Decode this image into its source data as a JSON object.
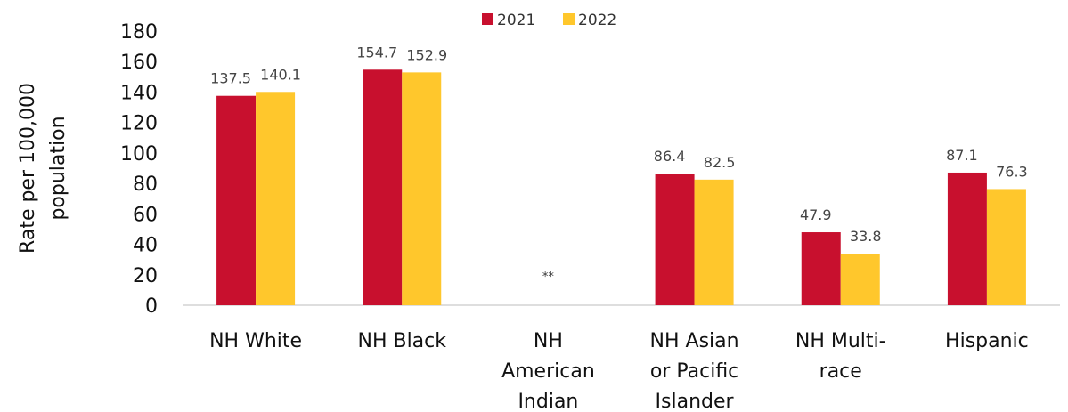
{
  "chart_data": {
    "type": "bar",
    "ylabel_lines": [
      "Rate per 100,000",
      "population"
    ],
    "ylim": [
      0,
      180
    ],
    "yticks": [
      "0",
      "20",
      "40",
      "60",
      "80",
      "100",
      "120",
      "140",
      "160",
      "180"
    ],
    "grid": false,
    "legend_position": "top-center",
    "categories": [
      [
        "NH White"
      ],
      [
        "NH Black"
      ],
      [
        "NH",
        "American",
        "Indian"
      ],
      [
        "NH Asian",
        "or Pacific",
        "Islander"
      ],
      [
        "NH Multi-",
        "race"
      ],
      [
        "Hispanic"
      ]
    ],
    "series": [
      {
        "name": "2021",
        "color": "#C8102E",
        "values": [
          137.5,
          154.7,
          null,
          86.4,
          47.9,
          87.1
        ]
      },
      {
        "name": "2022",
        "color": "#FFC72C",
        "values": [
          140.1,
          152.9,
          null,
          82.5,
          33.8,
          76.3
        ]
      }
    ],
    "suppressed_note": "**"
  }
}
